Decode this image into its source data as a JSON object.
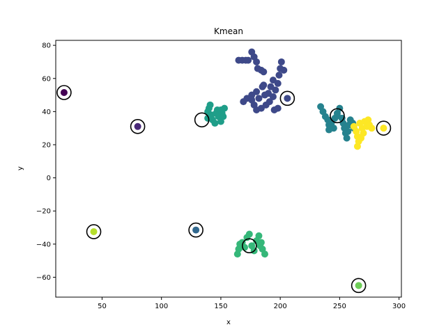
{
  "chart_data": {
    "type": "scatter",
    "title": "Kmean",
    "xlabel": "x",
    "ylabel": "y",
    "xlim": [
      11,
      302
    ],
    "ylim": [
      -72,
      83
    ],
    "xticks": [
      50,
      100,
      150,
      200,
      250,
      300
    ],
    "yticks": [
      -60,
      -40,
      -20,
      0,
      20,
      40,
      60,
      80
    ],
    "xtick_labels": [
      "50",
      "100",
      "150",
      "200",
      "250",
      "300"
    ],
    "ytick_labels": [
      "−60",
      "−40",
      "−20",
      "0",
      "20",
      "40",
      "60",
      "80"
    ],
    "clusters": [
      {
        "color": "#440154",
        "points": [
          [
            18,
            51.5
          ]
        ],
        "centroid": [
          18,
          51.5
        ]
      },
      {
        "color": "#482878",
        "points": [
          [
            80,
            31
          ]
        ],
        "centroid": [
          80,
          31
        ]
      },
      {
        "color": "#3e4989",
        "points": [
          [
            165,
            71
          ],
          [
            168,
            71
          ],
          [
            171,
            71
          ],
          [
            173,
            71
          ],
          [
            176,
            76
          ],
          [
            178,
            73
          ],
          [
            180,
            70
          ],
          [
            181,
            66
          ],
          [
            184,
            65
          ],
          [
            186,
            64
          ],
          [
            185,
            55
          ],
          [
            180,
            52
          ],
          [
            176,
            50
          ],
          [
            172,
            48
          ],
          [
            169,
            46
          ],
          [
            178,
            44
          ],
          [
            180,
            41
          ],
          [
            184,
            42
          ],
          [
            188,
            44
          ],
          [
            191,
            46
          ],
          [
            194,
            49
          ],
          [
            196,
            53
          ],
          [
            198,
            57
          ],
          [
            199,
            62
          ],
          [
            200,
            66
          ],
          [
            201,
            70
          ],
          [
            198,
            42
          ],
          [
            195,
            41
          ],
          [
            190,
            51
          ],
          [
            192,
            55
          ],
          [
            187,
            50
          ],
          [
            182,
            48
          ],
          [
            176,
            47
          ],
          [
            186,
            56
          ],
          [
            194,
            59
          ],
          [
            203,
            65
          ],
          [
            206,
            48
          ]
        ],
        "centroid": [
          206,
          48
        ]
      },
      {
        "color": "#31688e",
        "points": [
          [
            129,
            -31.5
          ]
        ],
        "centroid": [
          129,
          -31.5
        ]
      },
      {
        "color": "#26828e",
        "points": [
          [
            234,
            43
          ],
          [
            236,
            40
          ],
          [
            238,
            37
          ],
          [
            240,
            35
          ],
          [
            241,
            32
          ],
          [
            241,
            29
          ],
          [
            243,
            33
          ],
          [
            246,
            36
          ],
          [
            248,
            39
          ],
          [
            252,
            36
          ],
          [
            253,
            33
          ],
          [
            254,
            30
          ],
          [
            255,
            27
          ],
          [
            256,
            24
          ],
          [
            257,
            28
          ],
          [
            258,
            32
          ],
          [
            259,
            35
          ],
          [
            261,
            33
          ],
          [
            262,
            30
          ],
          [
            245,
            30
          ],
          [
            250,
            42
          ],
          [
            248,
            37.5
          ]
        ],
        "centroid": [
          248,
          37.5
        ]
      },
      {
        "color": "#1f9e89",
        "points": [
          [
            139,
            36
          ],
          [
            139,
            40
          ],
          [
            140,
            42
          ],
          [
            141,
            44
          ],
          [
            142,
            38
          ],
          [
            143,
            35
          ],
          [
            146,
            39
          ],
          [
            147,
            41
          ],
          [
            148,
            37
          ],
          [
            150,
            34
          ],
          [
            150,
            41
          ],
          [
            151,
            39
          ],
          [
            152,
            37
          ],
          [
            153,
            42
          ],
          [
            145,
            33
          ]
        ],
        "centroid": [
          134,
          35
        ]
      },
      {
        "color": "#35b779",
        "points": [
          [
            164,
            -46
          ],
          [
            165,
            -43
          ],
          [
            166,
            -40
          ],
          [
            168,
            -39
          ],
          [
            170,
            -42
          ],
          [
            172,
            -36
          ],
          [
            174,
            -34
          ],
          [
            176,
            -41
          ],
          [
            178,
            -44
          ],
          [
            180,
            -38
          ],
          [
            182,
            -35
          ],
          [
            184,
            -39
          ],
          [
            185,
            -43
          ],
          [
            187,
            -46
          ],
          [
            183,
            -41
          ]
        ],
        "centroid": [
          174,
          -41
        ]
      },
      {
        "color": "#6ece58",
        "points": [
          [
            266,
            -65
          ]
        ],
        "centroid": [
          266,
          -65
        ]
      },
      {
        "color": "#b5de2b",
        "points": [
          [
            43,
            -32.5
          ]
        ],
        "centroid": [
          43,
          -32.5
        ]
      },
      {
        "color": "#fde725",
        "points": [
          [
            262,
            31
          ],
          [
            264,
            28
          ],
          [
            265,
            25
          ],
          [
            266,
            22
          ],
          [
            265,
            19
          ],
          [
            267,
            33
          ],
          [
            269,
            30
          ],
          [
            270,
            27
          ],
          [
            271,
            34
          ],
          [
            273,
            31
          ],
          [
            274,
            35
          ],
          [
            275,
            32
          ],
          [
            277,
            30
          ],
          [
            268,
            24
          ],
          [
            287,
            30
          ]
        ],
        "centroid": [
          287,
          30
        ]
      }
    ]
  }
}
